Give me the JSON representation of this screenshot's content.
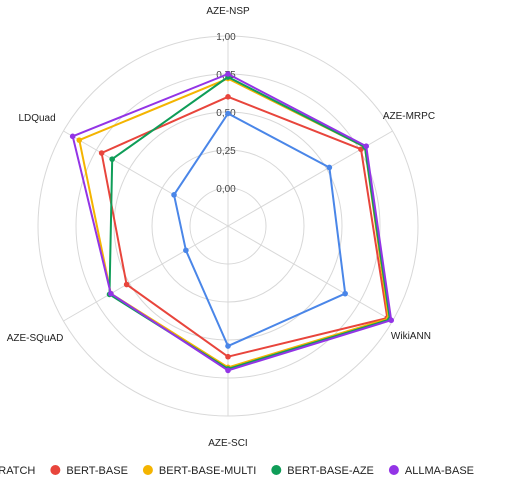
{
  "chart_data": {
    "type": "radar",
    "axes": [
      "AZE-NSP",
      "AZE-MRPC",
      "WikiANN",
      "AZE-SCI",
      "AZE-SQuAD",
      "LDQuad"
    ],
    "ticks": [
      "0,00",
      "0,25",
      "0,50",
      "0,75",
      "1,00"
    ],
    "range": [
      -0.25,
      1.0
    ],
    "legend_position": "bottom",
    "series": [
      {
        "name": "SCRATCH",
        "color": "#4a86e8",
        "values": [
          0.49,
          0.52,
          0.64,
          0.54,
          0.07,
          0.16
        ]
      },
      {
        "name": "BERT-BASE",
        "color": "#e8453c",
        "values": [
          0.6,
          0.76,
          0.96,
          0.61,
          0.52,
          0.71
        ]
      },
      {
        "name": "BERT-BASE-MULTI",
        "color": "#f4b400",
        "values": [
          0.72,
          0.79,
          0.97,
          0.68,
          0.64,
          0.88
        ]
      },
      {
        "name": "BERT-BASE-AZE",
        "color": "#0f9d58",
        "values": [
          0.73,
          0.79,
          0.98,
          0.69,
          0.65,
          0.63
        ]
      },
      {
        "name": "ALLMA-BASE",
        "color": "#9334e6",
        "values": [
          0.75,
          0.8,
          0.99,
          0.7,
          0.64,
          0.93
        ]
      }
    ]
  }
}
